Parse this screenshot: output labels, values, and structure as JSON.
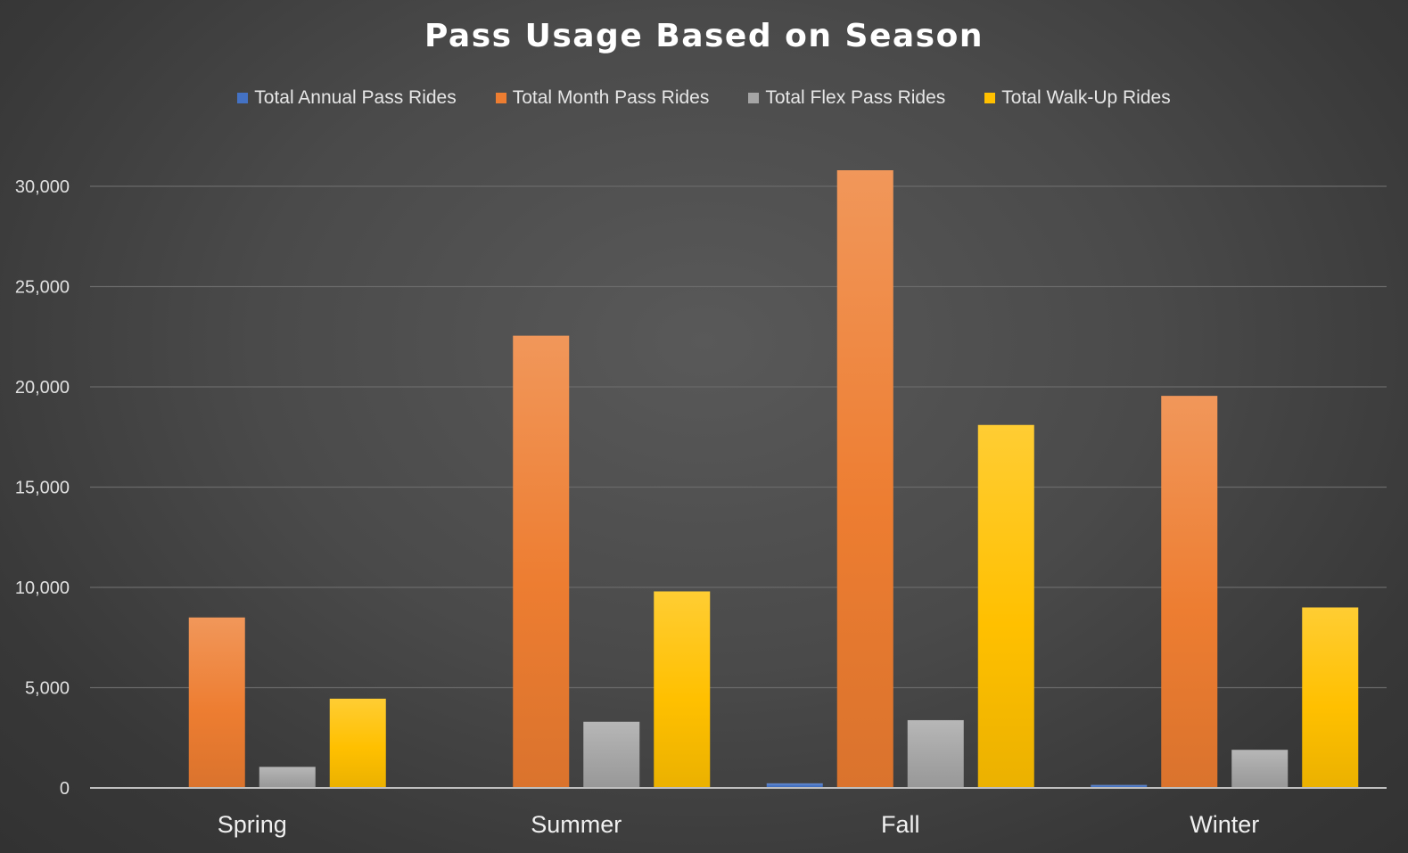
{
  "chart_data": {
    "type": "bar",
    "title": "Pass Usage Based on Season",
    "categories": [
      "Spring",
      "Summer",
      "Fall",
      "Winter"
    ],
    "series": [
      {
        "name": "Total Annual Pass Rides",
        "color": "#4472c4",
        "values": [
          0,
          0,
          230,
          150
        ]
      },
      {
        "name": "Total Month Pass Rides",
        "color": "#ed7d31",
        "values": [
          8500,
          22550,
          30800,
          19550
        ]
      },
      {
        "name": "Total Flex Pass Rides",
        "color": "#a5a5a5",
        "values": [
          1050,
          3300,
          3380,
          1900
        ]
      },
      {
        "name": "Total Walk-Up Rides",
        "color": "#ffc000",
        "values": [
          4450,
          9800,
          18100,
          9000
        ]
      }
    ],
    "yticks": [
      "0",
      "5,000",
      "10,000",
      "15,000",
      "20,000",
      "25,000",
      "30,000"
    ],
    "ylim": [
      0,
      30000
    ],
    "grid": true,
    "legend": "top-center",
    "xlabel": "",
    "ylabel": ""
  }
}
